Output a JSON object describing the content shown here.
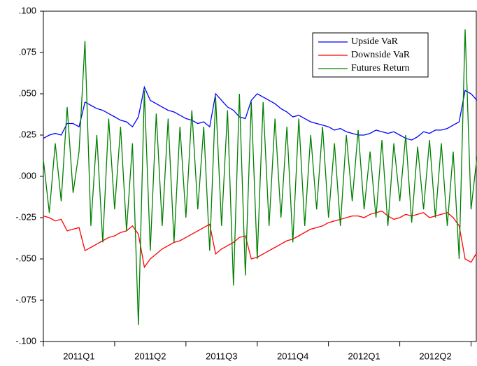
{
  "chart_data": {
    "type": "line",
    "categories": [
      null,
      null,
      null,
      null,
      null,
      null,
      "2011Q1",
      null,
      null,
      null,
      null,
      null,
      null,
      null,
      null,
      null,
      null,
      null,
      "2011Q2",
      null,
      null,
      null,
      null,
      null,
      null,
      null,
      null,
      null,
      null,
      null,
      "2011Q3",
      null,
      null,
      null,
      null,
      null,
      null,
      null,
      null,
      null,
      null,
      null,
      "2011Q4",
      null,
      null,
      null,
      null,
      null,
      null,
      null,
      null,
      null,
      null,
      null,
      "2012Q1",
      null,
      null,
      null,
      null,
      null,
      null,
      null,
      null,
      null,
      null,
      null,
      "2012Q2",
      null,
      null,
      null,
      null,
      null,
      null,
      null
    ],
    "series": [
      {
        "name": "Upside VaR",
        "color": "#0000ff",
        "values": [
          0.023,
          0.025,
          0.026,
          0.025,
          0.032,
          0.032,
          0.03,
          0.045,
          0.043,
          0.041,
          0.04,
          0.038,
          0.036,
          0.034,
          0.033,
          0.03,
          0.036,
          0.054,
          0.046,
          0.044,
          0.042,
          0.04,
          0.039,
          0.037,
          0.035,
          0.034,
          0.032,
          0.033,
          0.03,
          0.05,
          0.046,
          0.042,
          0.04,
          0.036,
          0.035,
          0.046,
          0.05,
          0.048,
          0.046,
          0.044,
          0.041,
          0.039,
          0.036,
          0.037,
          0.035,
          0.033,
          0.032,
          0.031,
          0.03,
          0.028,
          0.029,
          0.027,
          0.026,
          0.025,
          0.025,
          0.026,
          0.028,
          0.027,
          0.026,
          0.027,
          0.025,
          0.023,
          0.022,
          0.024,
          0.027,
          0.026,
          0.028,
          0.028,
          0.029,
          0.031,
          0.033,
          0.052,
          0.05,
          0.046
        ]
      },
      {
        "name": "Downside VaR",
        "color": "#ff0000",
        "values": [
          -0.024,
          -0.025,
          -0.027,
          -0.026,
          -0.033,
          -0.032,
          -0.031,
          -0.045,
          -0.043,
          -0.041,
          -0.039,
          -0.037,
          -0.036,
          -0.034,
          -0.033,
          -0.03,
          -0.035,
          -0.055,
          -0.05,
          -0.047,
          -0.044,
          -0.042,
          -0.04,
          -0.039,
          -0.037,
          -0.035,
          -0.033,
          -0.031,
          -0.029,
          -0.047,
          -0.044,
          -0.042,
          -0.04,
          -0.037,
          -0.036,
          -0.05,
          -0.049,
          -0.047,
          -0.045,
          -0.043,
          -0.041,
          -0.039,
          -0.038,
          -0.036,
          -0.034,
          -0.032,
          -0.031,
          -0.03,
          -0.028,
          -0.027,
          -0.026,
          -0.025,
          -0.024,
          -0.024,
          -0.025,
          -0.023,
          -0.022,
          -0.021,
          -0.024,
          -0.026,
          -0.025,
          -0.023,
          -0.024,
          -0.023,
          -0.022,
          -0.025,
          -0.024,
          -0.023,
          -0.022,
          -0.025,
          -0.03,
          -0.05,
          -0.052,
          -0.046
        ]
      },
      {
        "name": "Futures Return",
        "color": "#008000",
        "values": [
          0.01,
          -0.022,
          0.02,
          -0.015,
          0.042,
          -0.01,
          0.015,
          0.082,
          -0.03,
          0.025,
          -0.04,
          0.035,
          -0.02,
          0.03,
          -0.033,
          0.02,
          -0.09,
          0.052,
          -0.045,
          0.038,
          -0.03,
          0.035,
          -0.04,
          0.03,
          -0.025,
          0.04,
          -0.02,
          0.03,
          -0.045,
          0.048,
          -0.03,
          0.04,
          -0.066,
          0.05,
          -0.06,
          0.045,
          -0.05,
          0.045,
          -0.03,
          0.035,
          -0.025,
          0.03,
          -0.04,
          0.035,
          -0.03,
          0.025,
          -0.02,
          0.03,
          -0.025,
          0.02,
          -0.03,
          0.025,
          -0.015,
          0.028,
          -0.02,
          0.015,
          -0.025,
          0.022,
          -0.03,
          0.02,
          -0.015,
          0.025,
          -0.028,
          0.018,
          -0.02,
          0.022,
          -0.025,
          0.02,
          -0.03,
          0.015,
          -0.05,
          0.089,
          -0.02,
          0.012
        ]
      }
    ],
    "ylim": [
      -0.1,
      0.1
    ],
    "yticks": [
      {
        "value": -0.1,
        "label": "-.100"
      },
      {
        "value": -0.075,
        "label": "-.075"
      },
      {
        "value": -0.05,
        "label": "-.050"
      },
      {
        "value": -0.025,
        "label": "-.025"
      },
      {
        "value": 0,
        "label": ".000"
      },
      {
        "value": 0.025,
        "label": ".025"
      },
      {
        "value": 0.05,
        "label": ".050"
      },
      {
        "value": 0.075,
        "label": ".075"
      },
      {
        "value": 0.1,
        "label": ".100"
      }
    ],
    "grid": false,
    "legend": "top-right"
  }
}
